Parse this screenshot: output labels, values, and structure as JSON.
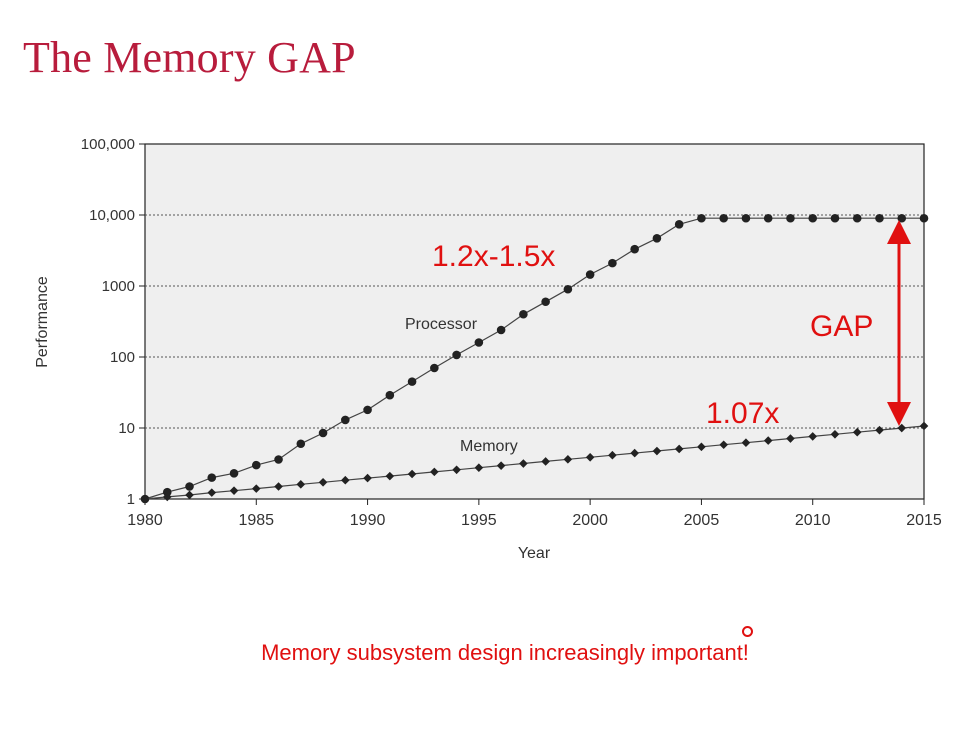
{
  "slide": {
    "title": "The Memory GAP",
    "footer": "Memory subsystem design increasingly important!"
  },
  "colors": {
    "title": "#b81c3c",
    "annotation": "#e01010",
    "plot_background": "#efefef",
    "series": "#222222"
  },
  "chart_data": {
    "type": "line",
    "title": "",
    "xlabel": "Year",
    "ylabel": "Performance",
    "x_ticks": [
      "1980",
      "1985",
      "1990",
      "1995",
      "2000",
      "2005",
      "2010",
      "2015"
    ],
    "y_ticks": [
      "1",
      "10",
      "100",
      "1000",
      "10,000",
      "100,000"
    ],
    "y_scale": "log",
    "xlim": [
      1980,
      2015
    ],
    "ylim": [
      1,
      100000
    ],
    "grid": "dotted horizontal at 10, 100, 1000, 10000",
    "x": [
      1980,
      1981,
      1982,
      1983,
      1984,
      1985,
      1986,
      1987,
      1988,
      1989,
      1990,
      1991,
      1992,
      1993,
      1994,
      1995,
      1996,
      1997,
      1998,
      1999,
      2000,
      2001,
      2002,
      2003,
      2004,
      2005,
      2006,
      2007,
      2008,
      2009,
      2010,
      2011,
      2012,
      2013,
      2014,
      2015
    ],
    "series": [
      {
        "name": "Processor",
        "values": [
          1,
          1.25,
          1.5,
          2,
          2.3,
          3,
          3.6,
          6,
          8.5,
          13,
          18,
          29,
          45,
          70,
          107,
          160,
          240,
          400,
          600,
          900,
          1450,
          2100,
          3300,
          4700,
          7400,
          9000,
          9000,
          9000,
          9000,
          9000,
          9000,
          9000,
          9000,
          9000,
          9000,
          9000
        ]
      },
      {
        "name": "Memory",
        "values": [
          1,
          1.07,
          1.14,
          1.23,
          1.31,
          1.4,
          1.5,
          1.61,
          1.72,
          1.84,
          1.97,
          2.1,
          2.25,
          2.41,
          2.58,
          2.76,
          2.95,
          3.16,
          3.38,
          3.62,
          3.87,
          4.14,
          4.43,
          4.74,
          5.07,
          5.43,
          5.81,
          6.21,
          6.65,
          7.11,
          7.61,
          8.15,
          8.72,
          9.33,
          9.98,
          10.68
        ]
      }
    ],
    "annotations": [
      {
        "text": "1.2x-1.5x"
      },
      {
        "text": "1.07x"
      },
      {
        "text": "GAP"
      }
    ]
  }
}
